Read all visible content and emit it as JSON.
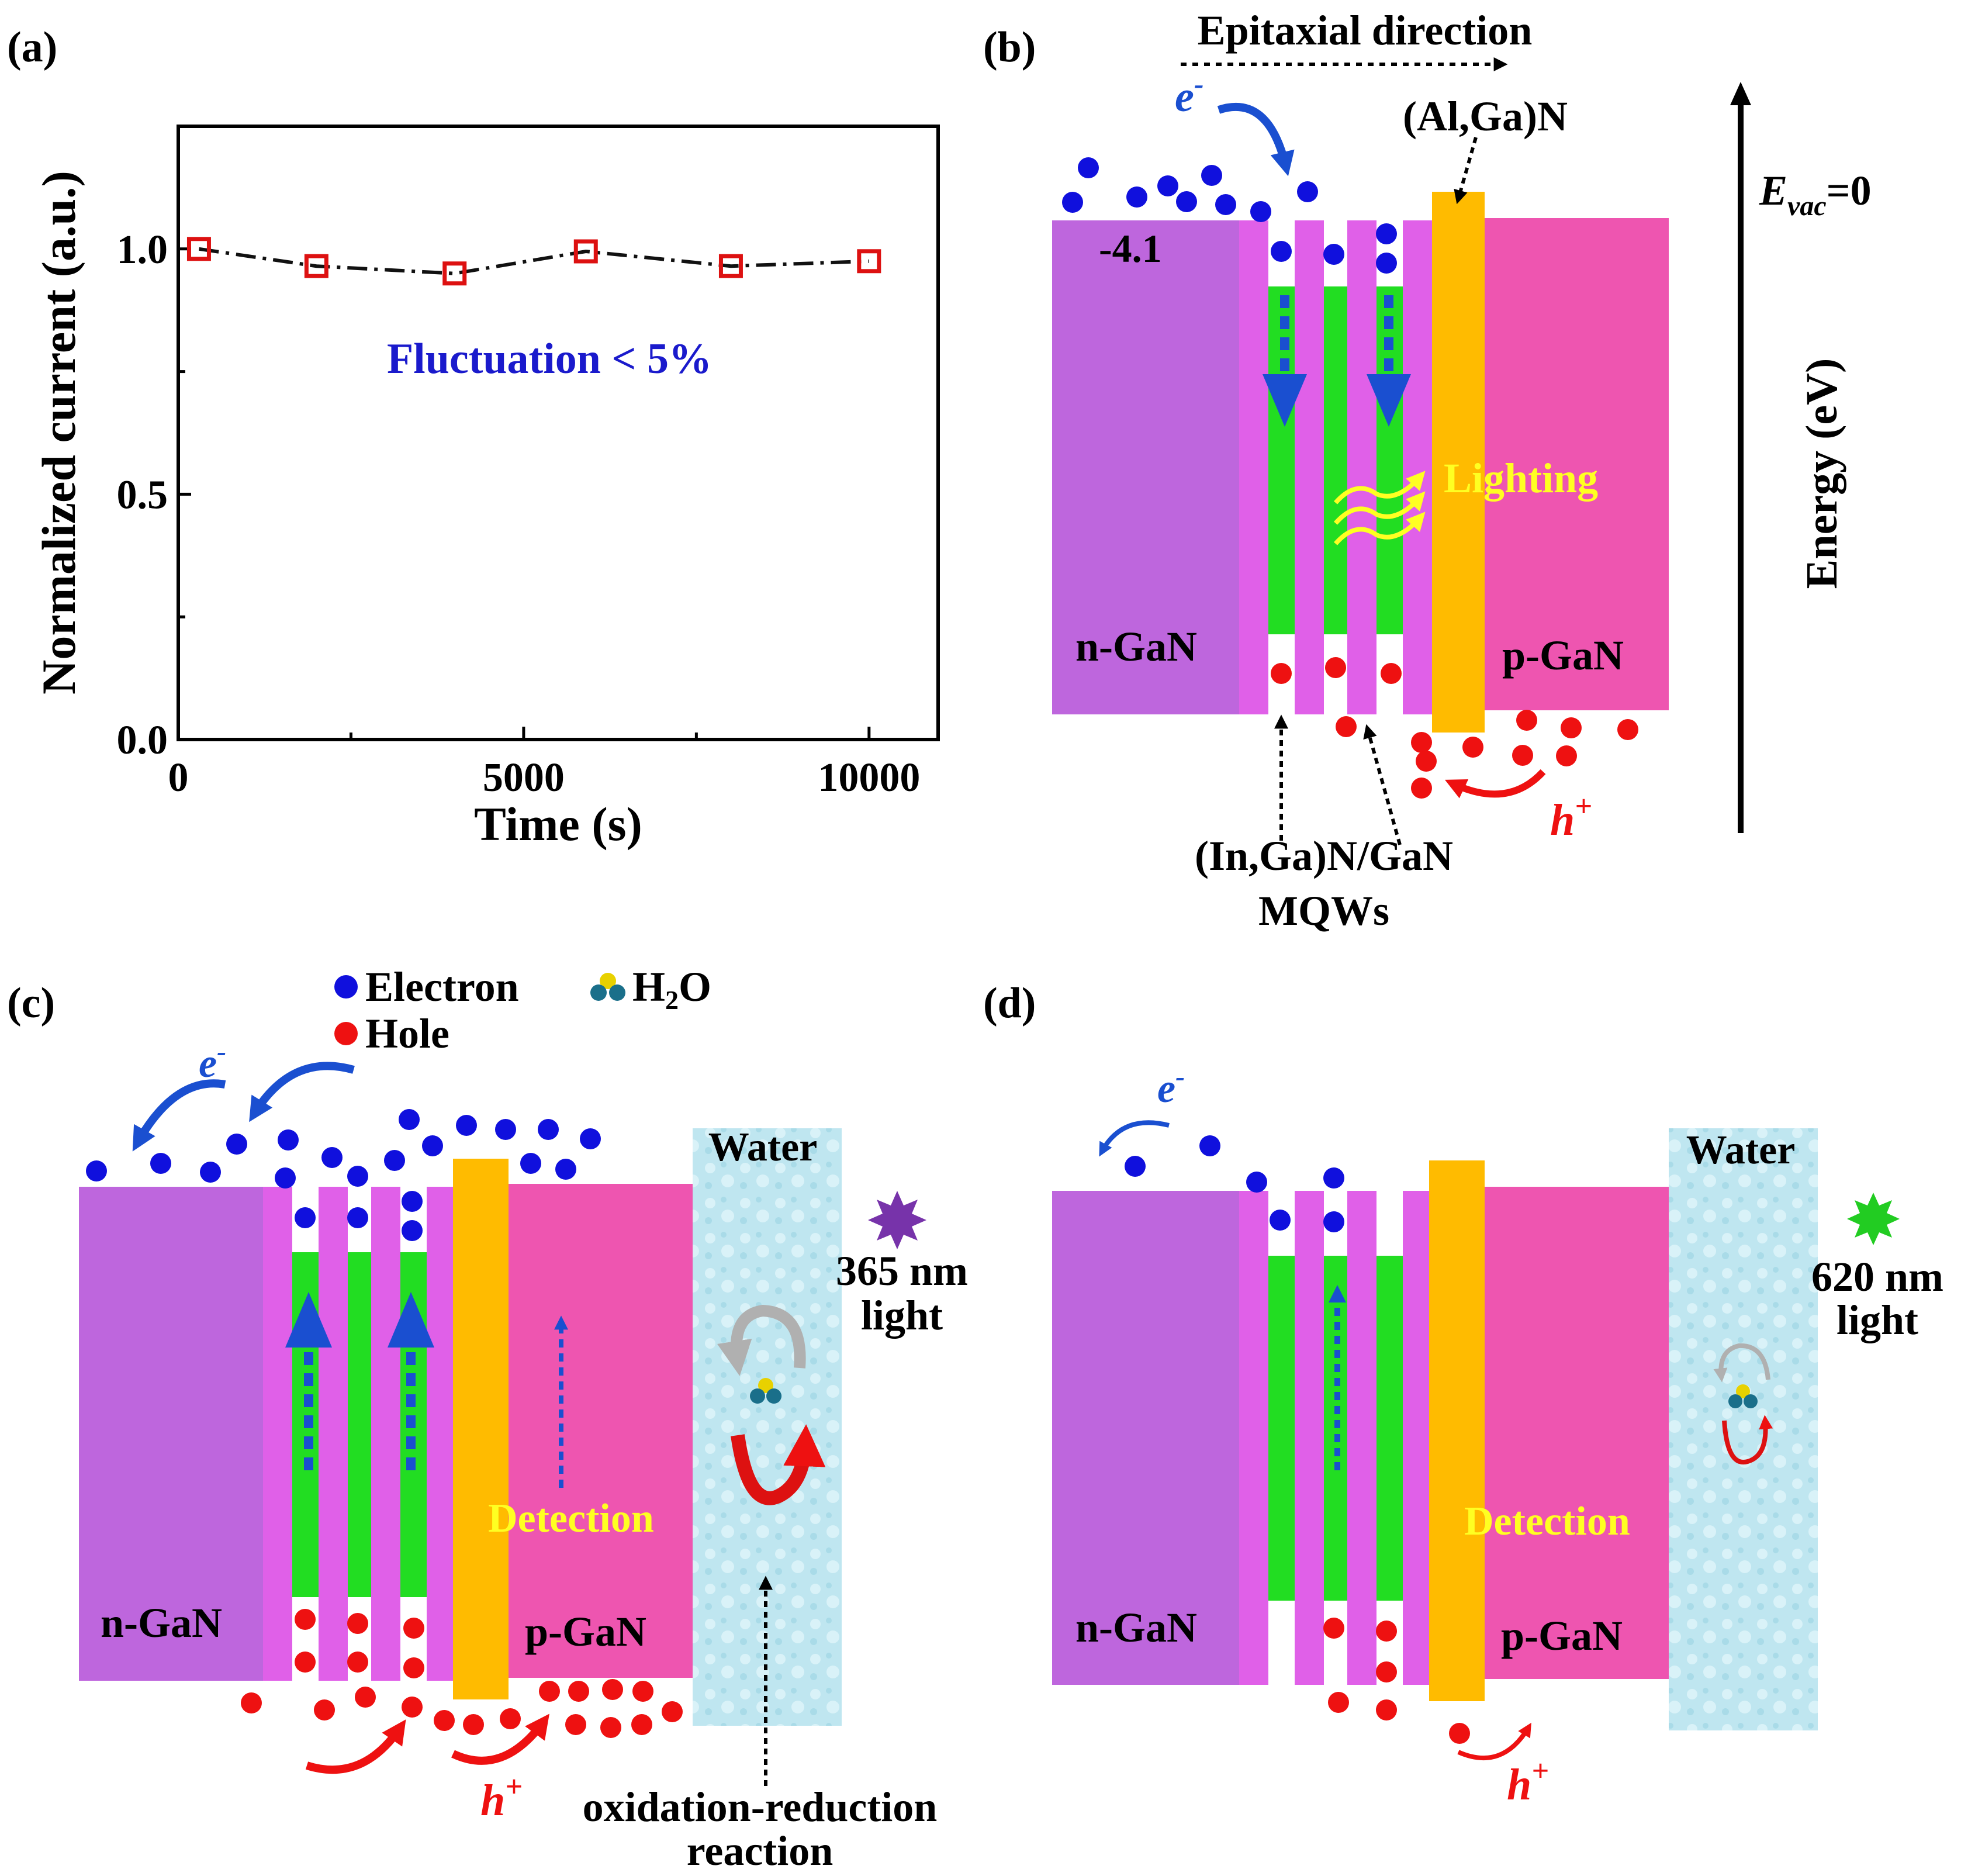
{
  "panel_labels": {
    "a": "(a)",
    "b": "(b)",
    "c": "(c)",
    "d": "(d)"
  },
  "colors": {
    "n_gan": "#be66dd",
    "barrier": "#e060e8",
    "well": "#22dd22",
    "algan": "#ffbb00",
    "p_gan": "#ee55b0",
    "water": "#bfe6f0",
    "electron": "#1010dd",
    "hole": "#ee1111",
    "arrow_blue": "#1a4fd0",
    "annot_blue": "#1a1acc",
    "lighting": "#ffff22",
    "marker": "#dd1111",
    "uv_star": "#7733aa",
    "red_star": "#22cc22"
  },
  "chart_data": {
    "type": "line",
    "title": "",
    "xlabel": "Time (s)",
    "ylabel": "Normalized current (a.u.)",
    "x": [
      300,
      2000,
      4000,
      5900,
      8000,
      10000
    ],
    "series": [
      {
        "name": "Normalized current",
        "values": [
          1.0,
          0.965,
          0.95,
          0.995,
          0.965,
          0.975
        ]
      }
    ],
    "xlim": [
      0,
      11000
    ],
    "ylim": [
      0,
      1.25
    ],
    "xticks": [
      0,
      5000,
      10000
    ],
    "xtick_labels": [
      "0",
      "5000",
      "10000"
    ],
    "yticks": [
      0,
      0.5,
      1.0
    ],
    "ytick_labels": [
      "0.0",
      "0.5",
      "1.0"
    ],
    "annotation": "Fluctuation < 5%",
    "marker": "open-square",
    "line_style": "dash-dot"
  },
  "panel_b": {
    "epitaxial": "Epitaxial direction",
    "algan": "(Al,Ga)N",
    "electron_sym": "e",
    "electron_sup": "-",
    "vacuum_level": "-4.1",
    "n_label": "n-GaN",
    "p_label": "p-GaN",
    "lighting": "Lighting",
    "hole_sym": "h",
    "hole_sup": "+",
    "mqw_line1": "(In,Ga)N/GaN",
    "mqw_line2": "MQWs",
    "evac_sym": "E",
    "evac_sub": "vac",
    "evac_val": "=0",
    "energy_axis": "Energy (eV)"
  },
  "panel_c": {
    "legend_electron": "Electron",
    "legend_hole": "Hole",
    "legend_h2o_prefix": "H",
    "legend_h2o_sub": "2",
    "legend_h2o_suffix": "O",
    "electron_sym": "e",
    "electron_sup": "-",
    "water": "Water",
    "light_line1": "365 nm",
    "light_line2": "light",
    "detection": "Detection",
    "n_label": "n-GaN",
    "p_label": "p-GaN",
    "hole_sym": "h",
    "hole_sup": "+",
    "reaction_line1": "oxidation-reduction",
    "reaction_line2": "reaction"
  },
  "panel_d": {
    "electron_sym": "e",
    "electron_sup": "-",
    "water": "Water",
    "light_line1": "620 nm",
    "light_line2": "light",
    "detection": "Detection",
    "n_label": "n-GaN",
    "p_label": "p-GaN",
    "hole_sym": "h",
    "hole_sup": "+"
  }
}
